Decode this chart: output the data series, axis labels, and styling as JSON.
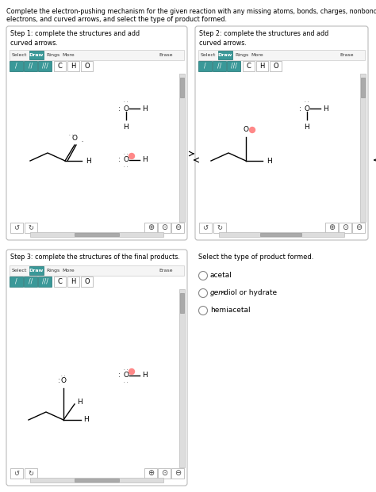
{
  "title_text1": "Complete the electron-pushing mechanism for the given reaction with any missing atoms, bonds, charges, nonbonding",
  "title_text2": "electrons, and curved arrows, and select the type of product formed.",
  "step1_title": "Step 1: complete the structures and add\ncurved arrows.",
  "step2_title": "Step 2: complete the structures and add\ncurved arrows.",
  "step3_title": "Step 3: complete the structures of the final products.",
  "select_title": "Select the type of product formed.",
  "radio_options": [
    "acetal",
    "gem-diol or hydrate",
    "hemiacetal"
  ],
  "bg_color": "#ffffff",
  "panel_border": "#bbbbbb",
  "draw_btn_color": "#3a9898",
  "btn_border": "#aaaaaa",
  "scrollbar_color": "#cccccc",
  "red_dot_color": "#ff8888",
  "teal_dark": "#1a7070"
}
